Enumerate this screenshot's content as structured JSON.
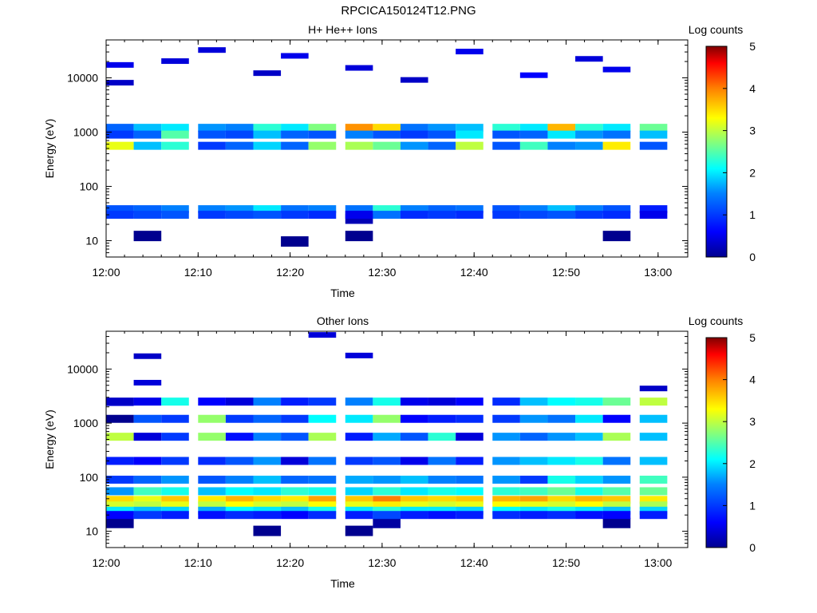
{
  "figure_title": "RPCICA150124T12.PNG",
  "colormap": [
    "#00008f",
    "#0000ff",
    "#0080ff",
    "#00ffff",
    "#80ff80",
    "#ffff00",
    "#ff8000",
    "#ff0000",
    "#800000"
  ],
  "chart_data": [
    {
      "type": "heatmap",
      "title": "H+ He++ Ions",
      "xlabel": "Time",
      "ylabel": "Energy (eV)",
      "x_ticks": [
        "12:00",
        "12:10",
        "12:20",
        "12:30",
        "12:40",
        "12:50",
        "13:00"
      ],
      "y_ticks": [
        "10",
        "100",
        "1000",
        "10000"
      ],
      "y_scale": "log",
      "xlim": [
        "12:00",
        "13:00"
      ],
      "ylim": [
        5,
        50000
      ],
      "colorbar": {
        "label": "Log counts",
        "ticks": [
          "0",
          "1",
          "2",
          "3",
          "4",
          "5"
        ],
        "range": [
          0,
          5
        ]
      },
      "time_bins": [
        "12:00",
        "12:03",
        "12:06",
        "12:10",
        "12:13",
        "12:16",
        "12:19",
        "12:22",
        "12:26",
        "12:29",
        "12:32",
        "12:35",
        "12:38",
        "12:42",
        "12:45",
        "12:48",
        "12:51",
        "12:54",
        "12:58"
      ],
      "background_points": [
        [
          0,
          17000,
          0.5
        ],
        [
          0,
          8000,
          0.3
        ],
        [
          2,
          20000,
          0.4
        ],
        [
          3,
          32000,
          0.4
        ],
        [
          5,
          12000,
          0.3
        ],
        [
          6,
          25000,
          0.5
        ],
        [
          8,
          15000,
          0.4
        ],
        [
          10,
          9000,
          0.3
        ],
        [
          12,
          30000,
          0.5
        ],
        [
          14,
          11000,
          0.6
        ],
        [
          16,
          22000,
          0.4
        ],
        [
          17,
          14000,
          0.5
        ]
      ],
      "low_channel_points": [
        [
          1,
          12,
          0.0
        ],
        [
          6,
          9.5,
          0.0
        ],
        [
          8,
          12,
          0.0
        ],
        [
          8,
          25,
          0.2
        ],
        [
          17,
          12,
          0.0
        ]
      ],
      "bands": [
        {
          "energy": 1200,
          "values": [
            1.3,
            1.8,
            2.0,
            1.6,
            1.5,
            2.3,
            2.0,
            2.7,
            3.9,
            3.5,
            1.4,
            1.6,
            1.8,
            2.3,
            2.0,
            3.7,
            2.3,
            2.0,
            2.6
          ]
        },
        {
          "energy": 900,
          "values": [
            1.0,
            1.3,
            2.5,
            1.2,
            1.1,
            1.8,
            1.3,
            1.2,
            1.5,
            1.2,
            1.0,
            1.2,
            2.0,
            1.2,
            1.3,
            2.0,
            1.6,
            1.4,
            1.8
          ]
        },
        {
          "energy": 560,
          "values": [
            3.2,
            1.8,
            2.3,
            1.0,
            1.3,
            1.9,
            1.3,
            2.8,
            2.9,
            2.6,
            1.6,
            1.3,
            3.0,
            1.2,
            2.4,
            1.5,
            1.6,
            3.4,
            1.2
          ]
        },
        {
          "energy": 38,
          "values": [
            1.2,
            1.3,
            1.5,
            1.5,
            1.6,
            2.0,
            1.4,
            1.5,
            1.4,
            2.3,
            1.5,
            1.3,
            1.4,
            1.2,
            1.5,
            1.8,
            1.5,
            1.2,
            0.8
          ]
        },
        {
          "energy": 30,
          "values": [
            1.0,
            1.1,
            1.2,
            1.0,
            1.1,
            1.2,
            1.0,
            0.9,
            0.5,
            1.4,
            0.9,
            1.0,
            0.9,
            1.0,
            1.1,
            1.2,
            1.0,
            0.9,
            0.5
          ]
        }
      ]
    },
    {
      "type": "heatmap",
      "title": "Other Ions",
      "xlabel": "Time",
      "ylabel": "Energy (eV)",
      "x_ticks": [
        "12:00",
        "12:10",
        "12:20",
        "12:30",
        "12:40",
        "12:50",
        "13:00"
      ],
      "y_ticks": [
        "10",
        "100",
        "1000",
        "10000"
      ],
      "y_scale": "log",
      "xlim": [
        "12:00",
        "13:00"
      ],
      "ylim": [
        5,
        50000
      ],
      "colorbar": {
        "label": "Log counts",
        "ticks": [
          "0",
          "1",
          "2",
          "3",
          "4",
          "5"
        ],
        "range": [
          0,
          5
        ]
      },
      "time_bins": [
        "12:00",
        "12:03",
        "12:06",
        "12:10",
        "12:13",
        "12:16",
        "12:19",
        "12:22",
        "12:26",
        "12:29",
        "12:32",
        "12:35",
        "12:38",
        "12:42",
        "12:45",
        "12:48",
        "12:51",
        "12:54",
        "12:58"
      ],
      "background_points": [
        [
          1,
          17000,
          0.3
        ],
        [
          1,
          5500,
          0.4
        ],
        [
          0,
          2300,
          0.5
        ],
        [
          7,
          42000,
          0.4
        ],
        [
          8,
          17500,
          0.4
        ],
        [
          18,
          4300,
          0.3
        ]
      ],
      "low_channel_points": [
        [
          0,
          14,
          0.0
        ],
        [
          5,
          10,
          0.0
        ],
        [
          8,
          10,
          0.0
        ],
        [
          9,
          14,
          0.1
        ],
        [
          17,
          14,
          0.0
        ]
      ],
      "bands": [
        {
          "energy": 2500,
          "values": [
            0.3,
            0.5,
            2.2,
            0.6,
            0.4,
            1.5,
            0.8,
            1.0,
            1.5,
            2.2,
            0.5,
            0.4,
            0.6,
            0.9,
            1.8,
            2.1,
            2.2,
            2.6,
            3.0
          ]
        },
        {
          "energy": 1200,
          "values": [
            0.0,
            1.2,
            1.0,
            2.8,
            1.0,
            1.3,
            1.0,
            2.1,
            2.0,
            2.8,
            0.6,
            0.8,
            0.9,
            1.0,
            1.6,
            1.4,
            2.0,
            0.6,
            1.8
          ]
        },
        {
          "energy": 560,
          "values": [
            3.0,
            0.4,
            1.0,
            2.8,
            0.7,
            1.5,
            1.2,
            2.9,
            0.8,
            1.7,
            1.2,
            2.3,
            0.4,
            1.6,
            1.3,
            1.6,
            1.8,
            2.9,
            1.8
          ]
        },
        {
          "energy": 200,
          "values": [
            0.8,
            0.6,
            1.0,
            0.9,
            1.2,
            1.6,
            0.4,
            1.4,
            1.0,
            1.2,
            0.5,
            1.4,
            0.8,
            1.6,
            1.8,
            2.0,
            2.2,
            1.4,
            1.8
          ]
        },
        {
          "energy": 90,
          "values": [
            1.0,
            1.3,
            1.6,
            1.2,
            1.5,
            1.8,
            1.3,
            1.4,
            1.7,
            1.6,
            1.8,
            1.5,
            1.4,
            1.6,
            1.0,
            2.2,
            1.9,
            1.6,
            2.4
          ]
        },
        {
          "energy": 55,
          "values": [
            1.6,
            2.4,
            2.2,
            1.8,
            2.1,
            2.0,
            2.3,
            2.2,
            1.9,
            2.3,
            2.0,
            2.2,
            2.1,
            2.3,
            2.4,
            2.6,
            2.2,
            2.5,
            2.6
          ]
        },
        {
          "energy": 38,
          "values": [
            3.5,
            3.2,
            3.6,
            3.4,
            3.7,
            3.5,
            3.4,
            3.8,
            3.6,
            4.0,
            3.6,
            3.5,
            3.6,
            3.7,
            3.8,
            3.5,
            3.7,
            3.6,
            3.4
          ]
        },
        {
          "energy": 30,
          "values": [
            3.1,
            3.0,
            3.2,
            3.0,
            3.3,
            3.1,
            3.0,
            3.3,
            3.2,
            3.4,
            3.2,
            3.1,
            3.2,
            3.3,
            3.2,
            3.1,
            3.3,
            3.0,
            2.9
          ]
        },
        {
          "energy": 24,
          "values": [
            2.0,
            1.8,
            1.9,
            1.7,
            2.1,
            2.0,
            1.8,
            2.2,
            2.0,
            2.3,
            2.0,
            2.0,
            1.9,
            2.1,
            2.0,
            2.2,
            2.0,
            1.8,
            1.9
          ]
        },
        {
          "energy": 20,
          "values": [
            0.6,
            1.0,
            0.8,
            0.7,
            0.9,
            0.8,
            0.6,
            0.9,
            0.8,
            1.1,
            0.8,
            0.7,
            0.8,
            0.9,
            0.8,
            0.9,
            0.7,
            0.6,
            0.8
          ]
        }
      ]
    }
  ]
}
